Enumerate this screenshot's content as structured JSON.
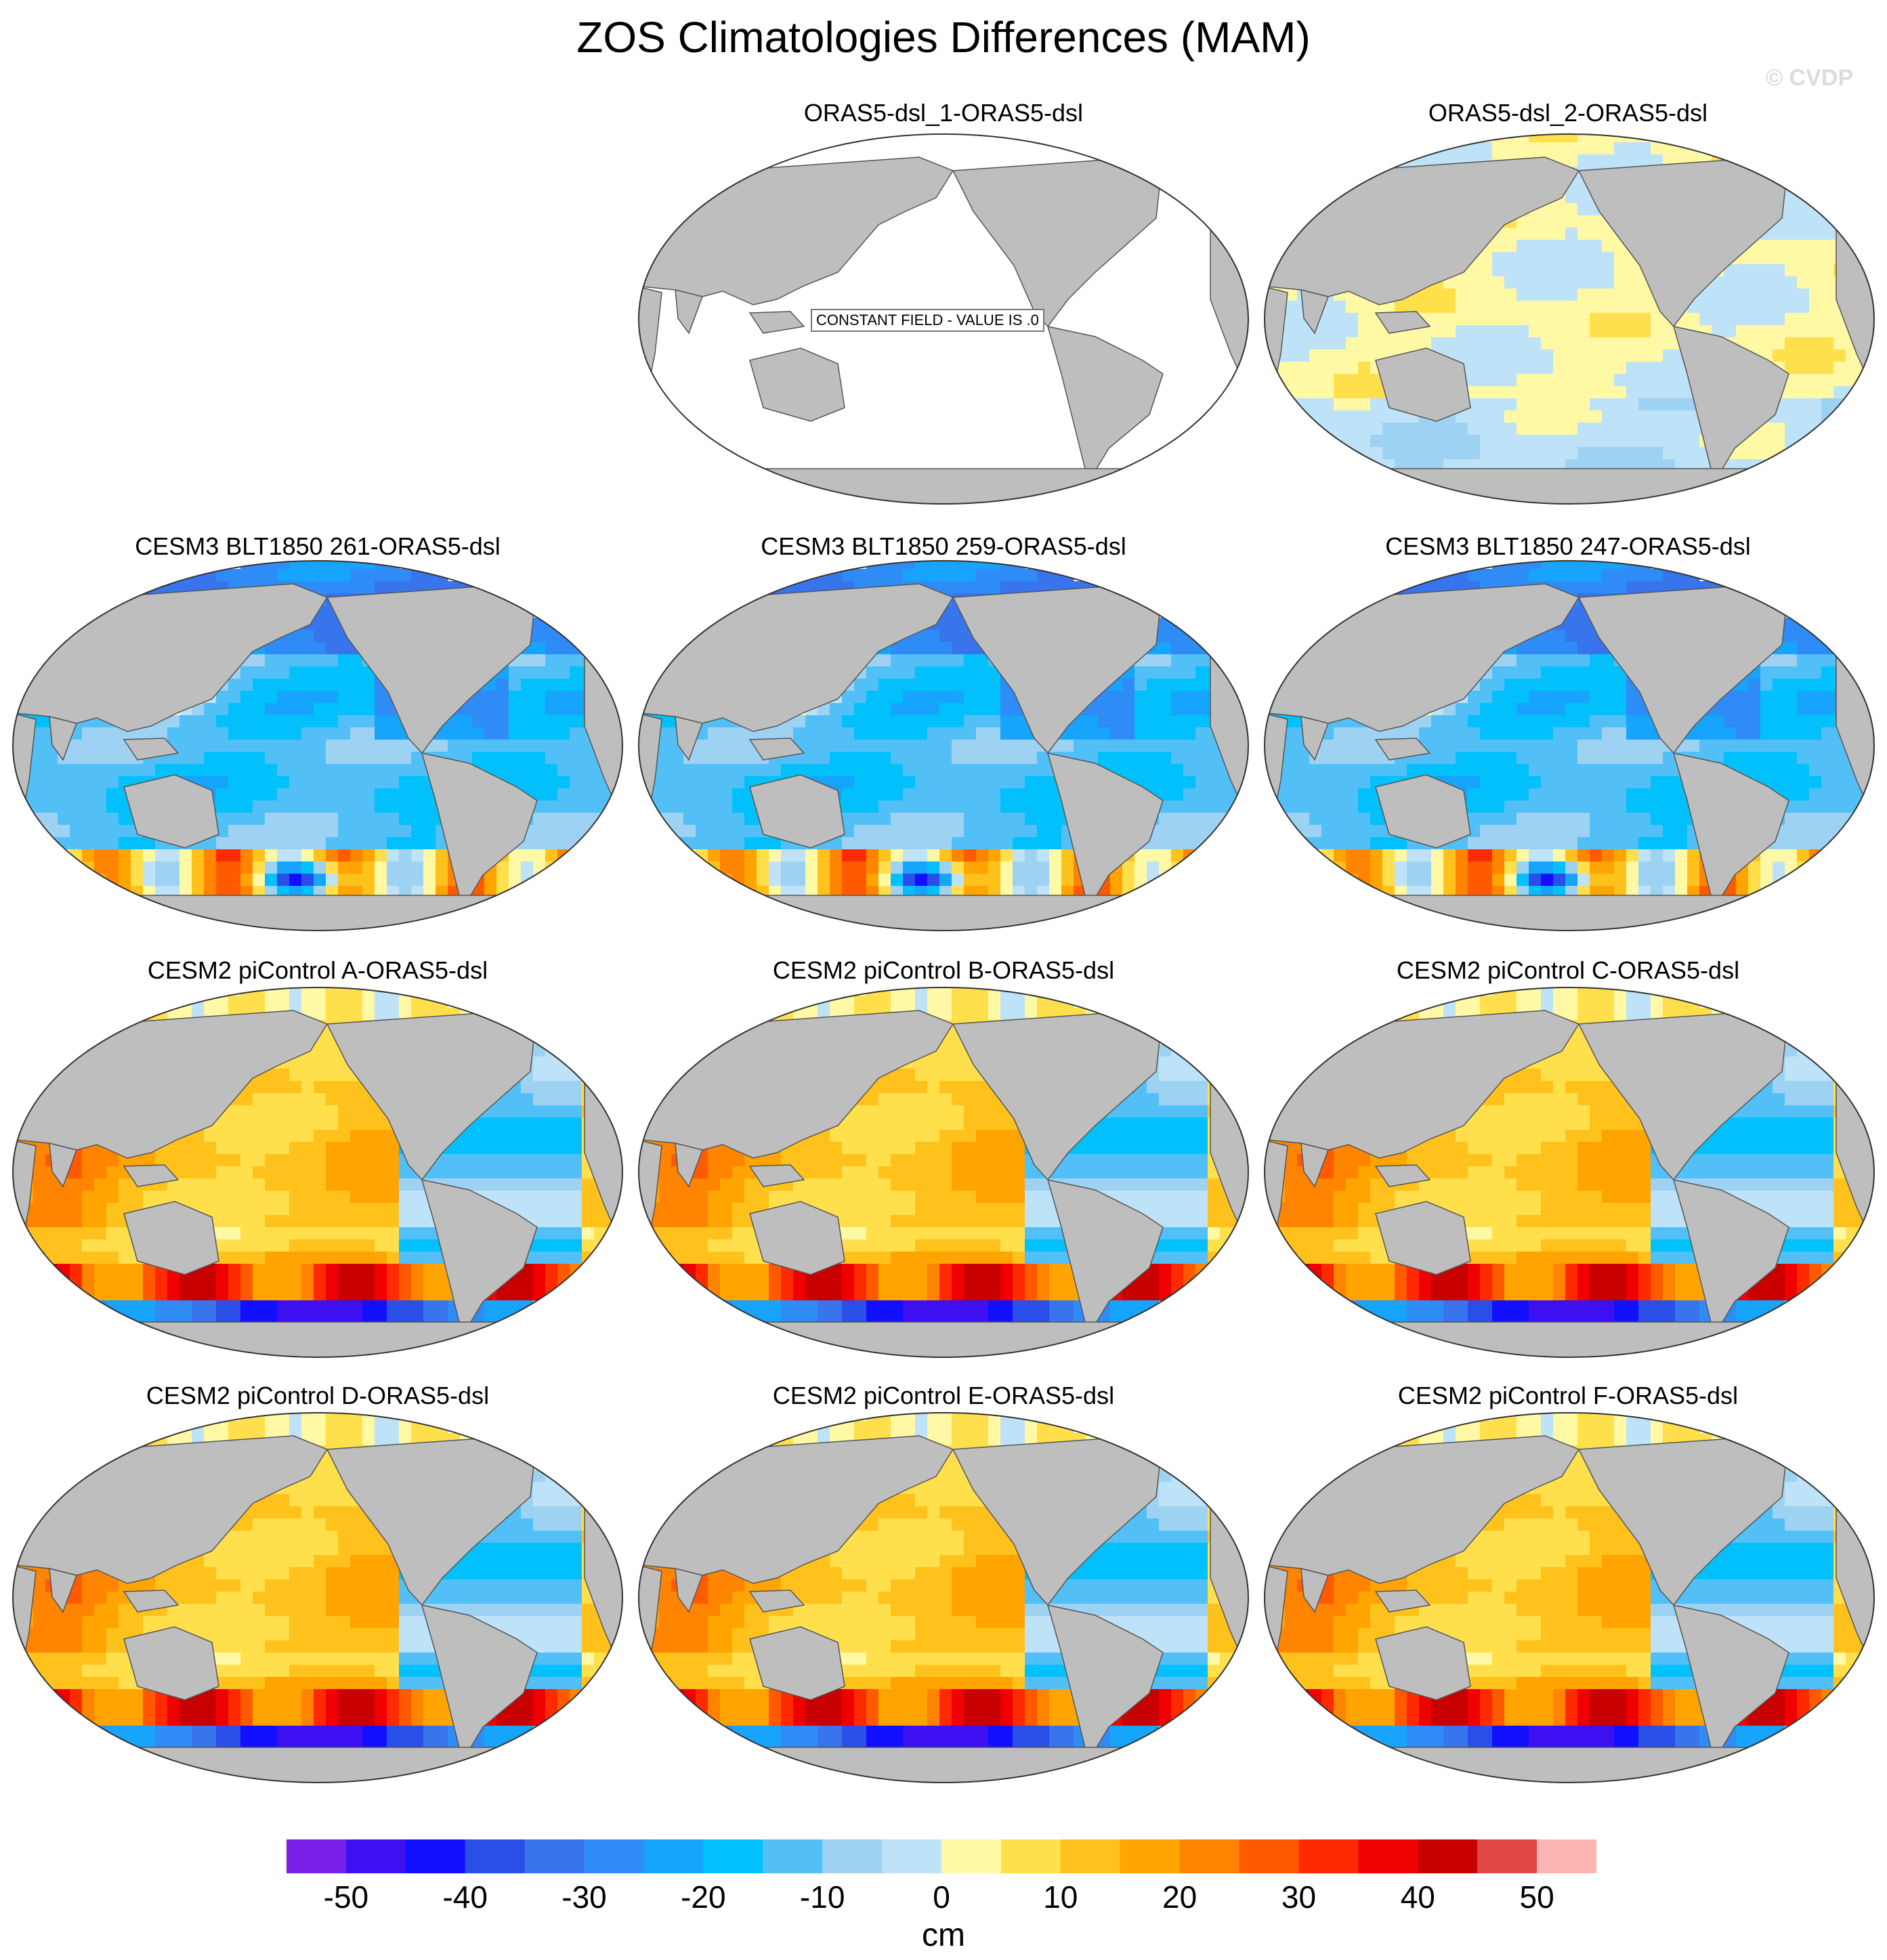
{
  "title": "ZOS Climatologies Differences (MAM)",
  "watermark": "© CVDP",
  "colors": {
    "land": "#bebebe",
    "coast": "#555555",
    "background": "#ffffff"
  },
  "panels": [
    {
      "title": "ORAS5-dsl_1-ORAS5-dsl",
      "pattern": "constant",
      "note": "CONSTANT FIELD - VALUE IS .0"
    },
    {
      "title": "ORAS5-dsl_2-ORAS5-dsl",
      "pattern": "small"
    },
    {
      "title": "CESM3 BLT1850 261-ORAS5-dsl",
      "pattern": "cesm3"
    },
    {
      "title": "CESM3 BLT1850 259-ORAS5-dsl",
      "pattern": "cesm3"
    },
    {
      "title": "CESM3 BLT1850 247-ORAS5-dsl",
      "pattern": "cesm3"
    },
    {
      "title": "CESM2 piControl A-ORAS5-dsl",
      "pattern": "cesm2"
    },
    {
      "title": "CESM2 piControl B-ORAS5-dsl",
      "pattern": "cesm2"
    },
    {
      "title": "CESM2 piControl C-ORAS5-dsl",
      "pattern": "cesm2"
    },
    {
      "title": "CESM2 piControl D-ORAS5-dsl",
      "pattern": "cesm2"
    },
    {
      "title": "CESM2 piControl E-ORAS5-dsl",
      "pattern": "cesm2"
    },
    {
      "title": "CESM2 piControl F-ORAS5-dsl",
      "pattern": "cesm2"
    }
  ],
  "colorbar": {
    "units": "cm",
    "levels": [
      -55,
      -50,
      -45,
      -40,
      -35,
      -30,
      -25,
      -20,
      -15,
      -10,
      -5,
      0,
      5,
      10,
      15,
      20,
      25,
      30,
      35,
      40,
      45,
      50
    ],
    "labels": [
      "-50",
      "-40",
      "-30",
      "-20",
      "-10",
      "0",
      "10",
      "20",
      "30",
      "40",
      "50"
    ],
    "label_values": [
      -50,
      -40,
      -30,
      -20,
      -10,
      0,
      10,
      20,
      30,
      40,
      50
    ],
    "colors": [
      "#7a1fe8",
      "#3c10f0",
      "#1010ff",
      "#2a4ee8",
      "#3874ec",
      "#2f8cf6",
      "#16a4fc",
      "#02c0fc",
      "#52c0f6",
      "#9ed2f2",
      "#bee2f8",
      "#fff8a4",
      "#ffe04c",
      "#ffc21c",
      "#ffa400",
      "#ff8400",
      "#ff5a00",
      "#ff2a00",
      "#f00000",
      "#c80000",
      "#e04848",
      "#ffb4b4"
    ]
  }
}
